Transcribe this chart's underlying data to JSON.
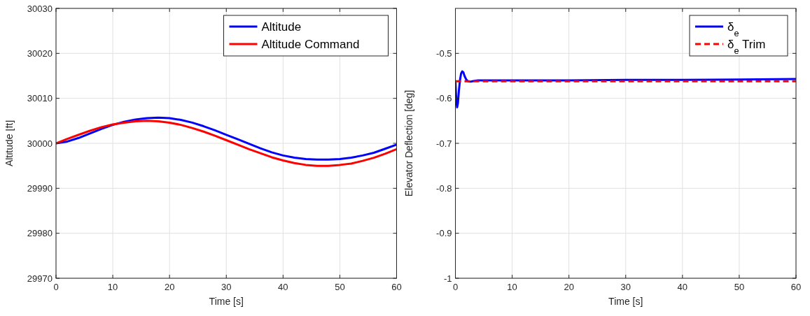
{
  "chart_data": [
    {
      "type": "line",
      "xlabel": "Time [s]",
      "ylabel": "Altitude [ft]",
      "xlim": [
        0,
        60
      ],
      "xticks": [
        0,
        10,
        20,
        30,
        40,
        50,
        60
      ],
      "ylim": [
        29970,
        30030
      ],
      "yticks": [
        29970,
        29980,
        29990,
        30000,
        30010,
        30020,
        30030
      ],
      "grid": true,
      "legend": "top right",
      "line_style": "solid",
      "series": [
        {
          "name": "Altitude",
          "color": "#0000ff",
          "x": [
            0,
            2,
            4,
            6,
            8,
            10,
            12,
            14,
            16,
            18,
            20,
            22,
            24,
            26,
            28,
            30,
            32,
            34,
            36,
            38,
            40,
            42,
            44,
            46,
            48,
            50,
            52,
            54,
            56,
            58,
            60
          ],
          "values": [
            30000,
            30000.4,
            30001.2,
            30002.2,
            30003.2,
            30004.1,
            30004.8,
            30005.3,
            30005.6,
            30005.7,
            30005.6,
            30005.2,
            30004.6,
            30003.8,
            30002.9,
            30001.9,
            30000.9,
            29999.9,
            29998.9,
            29998,
            29997.3,
            29996.8,
            29996.5,
            29996.4,
            29996.4,
            29996.5,
            29996.8,
            29997.3,
            29997.9,
            29998.8,
            29999.7
          ]
        },
        {
          "name": "Altitude Command",
          "color": "#ff0000",
          "x": [
            0,
            2,
            4,
            6,
            8,
            10,
            12,
            14,
            16,
            18,
            20,
            22,
            24,
            26,
            28,
            30,
            32,
            34,
            36,
            38,
            40,
            42,
            44,
            46,
            48,
            50,
            52,
            54,
            56,
            58,
            60
          ],
          "values": [
            30000,
            30001,
            30001.9,
            30002.8,
            30003.6,
            30004.2,
            30004.6,
            30004.9,
            30005,
            30004.9,
            30004.6,
            30004.1,
            30003.4,
            30002.6,
            30001.7,
            30000.7,
            29999.7,
            29998.7,
            29997.8,
            29996.9,
            29996.2,
            29995.6,
            29995.2,
            29995,
            29995,
            29995.2,
            29995.5,
            29996.1,
            29996.8,
            29997.7,
            29998.7
          ]
        }
      ]
    },
    {
      "type": "line",
      "xlabel": "Time [s]",
      "ylabel": "Elevator Deflection [deg]",
      "xlim": [
        0,
        60
      ],
      "xticks": [
        0,
        10,
        20,
        30,
        40,
        50,
        60
      ],
      "ylim": [
        -1,
        -0.4
      ],
      "yticks": [
        -1,
        -0.9,
        -0.8,
        -0.7,
        -0.6,
        -0.5
      ],
      "grid": true,
      "legend": "top right",
      "series": [
        {
          "name": "δ$_{e}$",
          "color": "#0000ff",
          "line_style": "solid",
          "x": [
            0,
            0.1,
            0.2,
            0.3,
            0.45,
            0.6,
            0.8,
            1,
            1.2,
            1.4,
            1.6,
            1.9,
            2.2,
            2.6,
            3,
            3.5,
            4,
            5,
            10,
            20,
            30,
            40,
            50,
            60
          ],
          "values": [
            -0.56,
            -0.59,
            -0.61,
            -0.62,
            -0.61,
            -0.585,
            -0.56,
            -0.545,
            -0.54,
            -0.542,
            -0.55,
            -0.558,
            -0.562,
            -0.563,
            -0.562,
            -0.561,
            -0.56,
            -0.56,
            -0.56,
            -0.56,
            -0.559,
            -0.559,
            -0.558,
            -0.557
          ]
        },
        {
          "name": "δ$_{e}$ Trim",
          "color": "#ff0000",
          "line_style": "dashed",
          "x": [
            0,
            60
          ],
          "values": [
            -0.562,
            -0.562
          ]
        }
      ]
    }
  ]
}
